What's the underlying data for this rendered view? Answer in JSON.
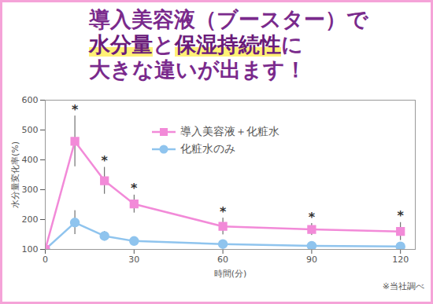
{
  "chart_data": {
    "type": "line",
    "title": [
      "導入美容液（ブースター）で",
      "水分量と保湿持続性に",
      "大きな違いが出ます！"
    ],
    "highlights": [
      "水分量",
      "保湿持続性"
    ],
    "x_label": "時間(分)",
    "y_label": "水分量変化率(%)",
    "x": [
      0,
      10,
      20,
      30,
      60,
      90,
      120
    ],
    "series": [
      {
        "name": "化粧水のみ",
        "color": "#8fc4ee",
        "marker": "circle",
        "values": [
          100,
          190,
          145,
          128,
          118,
          112,
          110
        ],
        "error": [
          null,
          40,
          15,
          12,
          8,
          8,
          8
        ]
      },
      {
        "name": "導入美容液＋化粧水",
        "color": "#f28ad8",
        "marker": "square",
        "values": [
          100,
          462,
          330,
          252,
          177,
          167,
          160
        ],
        "error": [
          null,
          85,
          45,
          30,
          28,
          20,
          30
        ]
      }
    ],
    "annotations": [
      {
        "x": 10,
        "text": "*"
      },
      {
        "x": 20,
        "text": "*"
      },
      {
        "x": 30,
        "text": "*"
      },
      {
        "x": 60,
        "text": "*"
      },
      {
        "x": 90,
        "text": "*"
      },
      {
        "x": 120,
        "text": "*"
      }
    ],
    "note": "※当社調べ",
    "xlim": [
      0,
      125
    ],
    "ylim": [
      100,
      600
    ],
    "xticks": [
      0,
      30,
      60,
      90,
      120
    ],
    "yticks": [
      100,
      200,
      300,
      400,
      500,
      600
    ],
    "grid": false,
    "legend": "top"
  }
}
